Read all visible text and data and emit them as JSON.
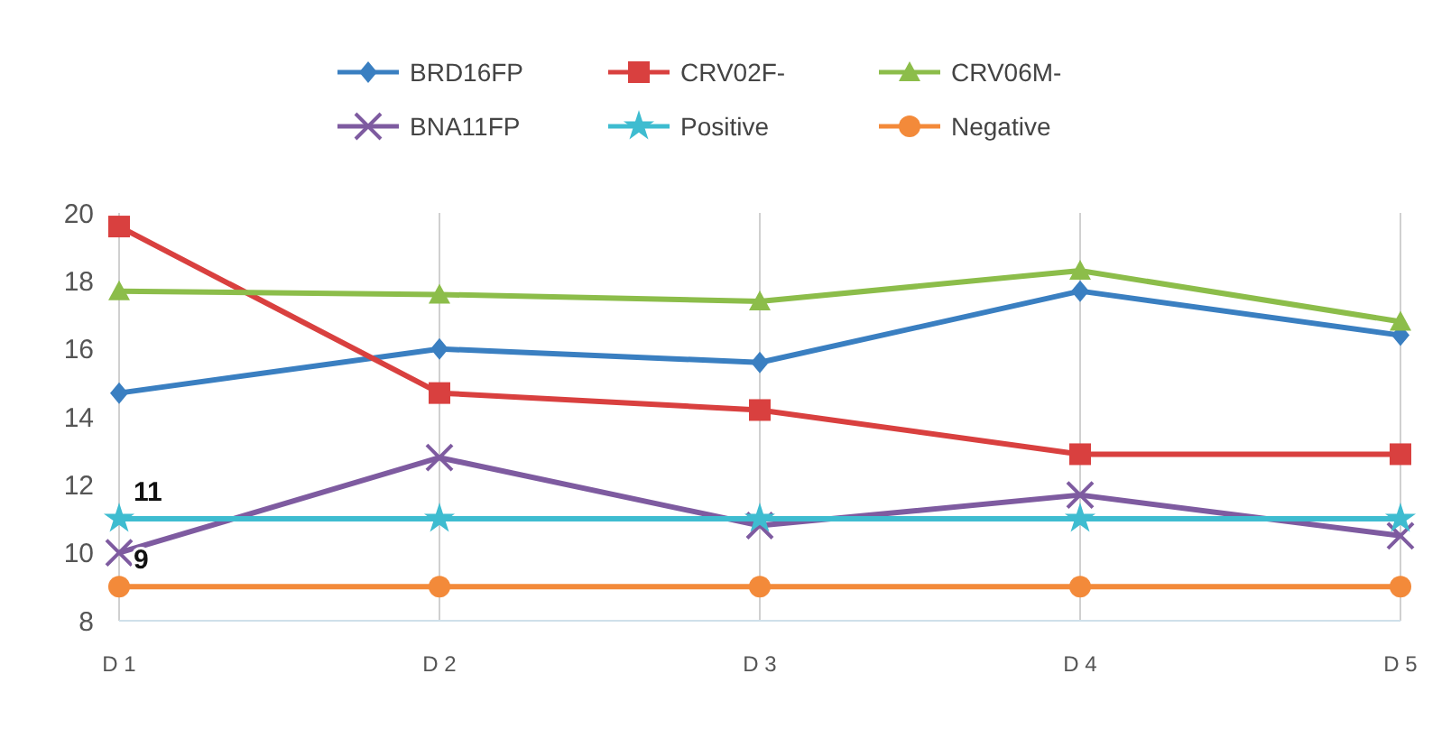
{
  "chart_data": {
    "type": "line",
    "categories": [
      "D 1",
      "D 2",
      "D 3",
      "D 4",
      "D 5"
    ],
    "ylim": [
      8,
      20
    ],
    "yticks": [
      8,
      10,
      12,
      14,
      16,
      18,
      20
    ],
    "grid": "x",
    "legend": "top",
    "series": [
      {
        "name": "BRD16FP",
        "color": "#3a7fc1",
        "marker": "diamond",
        "values": [
          14.7,
          16.0,
          15.6,
          17.7,
          16.4
        ]
      },
      {
        "name": "CRV02F-",
        "color": "#d9403f",
        "marker": "square",
        "values": [
          19.6,
          14.7,
          14.2,
          12.9,
          12.9
        ]
      },
      {
        "name": "CRV06M-",
        "color": "#8cbd4a",
        "marker": "triangle",
        "values": [
          17.7,
          17.6,
          17.4,
          18.3,
          16.8
        ]
      },
      {
        "name": "BNA11FP",
        "color": "#7e5ba0",
        "marker": "cross",
        "values": [
          10.0,
          12.8,
          10.8,
          11.7,
          10.5
        ]
      },
      {
        "name": "Positive",
        "color": "#3ebcd0",
        "marker": "star",
        "values": [
          11,
          11,
          11,
          11,
          11
        ],
        "value_labels": [
          "11",
          null,
          null,
          null,
          null
        ]
      },
      {
        "name": "Negative",
        "color": "#f38a3a",
        "marker": "circle",
        "values": [
          9,
          9,
          9,
          9,
          9
        ],
        "value_labels": [
          "9",
          null,
          null,
          null,
          null
        ]
      }
    ]
  }
}
